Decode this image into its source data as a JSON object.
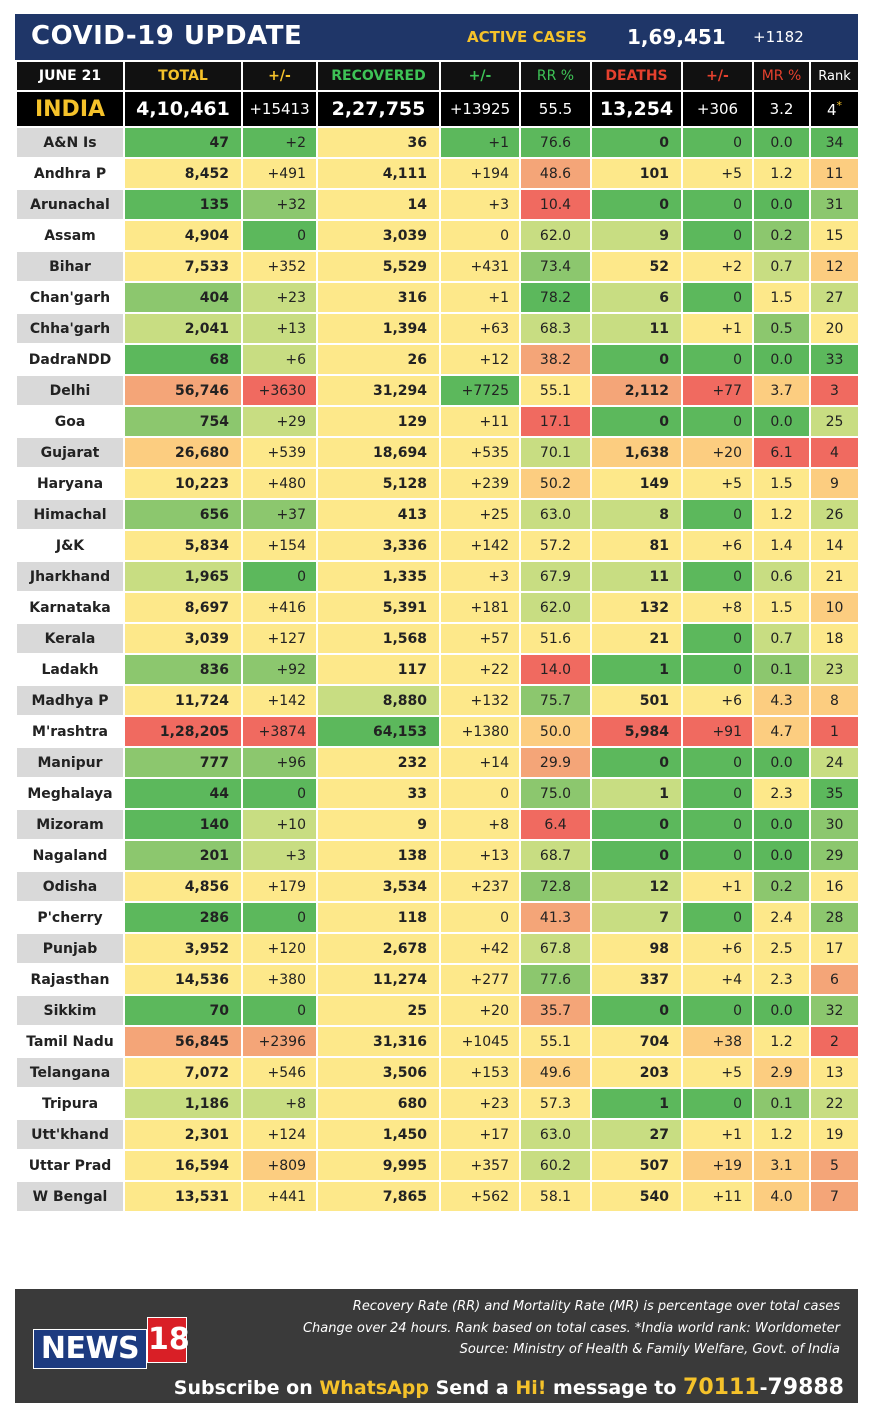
{
  "header": {
    "title": "COVID-19 UPDATE",
    "active_label": "ACTIVE CASES",
    "active_value": "1,69,451",
    "active_change": "+1182"
  },
  "columns": {
    "date": "JUNE 21",
    "total": "TOTAL",
    "total_change": "+/-",
    "recovered": "RECOVERED",
    "recovered_change": "+/-",
    "rr": "RR %",
    "deaths": "DEATHS",
    "deaths_change": "+/-",
    "mr": "MR %",
    "rank": "Rank"
  },
  "india": {
    "name": "INDIA",
    "total": "4,10,461",
    "total_change": "+15413",
    "recovered": "2,27,755",
    "recovered_change": "+13925",
    "rr": "55.5",
    "deaths": "13,254",
    "deaths_change": "+306",
    "mr": "3.2",
    "rank": "4",
    "rank_mark": "*"
  },
  "colors": {
    "header_blue": "#1f3668",
    "gold": "#f5c22a",
    "green_text": "#3ec456",
    "red_text": "#e5412e",
    "name_gray": "#d9d9d9",
    "name_white": "#ffffff",
    "scale": [
      "#5cb85c",
      "#8cc76e",
      "#c8dd82",
      "#fde88a",
      "#fccd80",
      "#f4a578",
      "#f06a60"
    ]
  },
  "states": [
    {
      "name": "A&N Is",
      "shade": "g",
      "total": "47",
      "tc": "+2",
      "rec": "36",
      "rc": "+1",
      "rr": "76.6",
      "deaths": "0",
      "dc": "0",
      "mr": "0.0",
      "rank": "34",
      "c": [
        0,
        0,
        3,
        0,
        0,
        0,
        0,
        0,
        0
      ]
    },
    {
      "name": "Andhra P",
      "shade": "w",
      "total": "8,452",
      "tc": "+491",
      "rec": "4,111",
      "rc": "+194",
      "rr": "48.6",
      "deaths": "101",
      "dc": "+5",
      "mr": "1.2",
      "rank": "11",
      "c": [
        3,
        3,
        3,
        3,
        5,
        3,
        3,
        3,
        4
      ]
    },
    {
      "name": "Arunachal",
      "shade": "g",
      "total": "135",
      "tc": "+32",
      "rec": "14",
      "rc": "+3",
      "rr": "10.4",
      "deaths": "0",
      "dc": "0",
      "mr": "0.0",
      "rank": "31",
      "c": [
        0,
        1,
        3,
        3,
        6,
        0,
        0,
        0,
        1
      ]
    },
    {
      "name": "Assam",
      "shade": "w",
      "total": "4,904",
      "tc": "0",
      "rec": "3,039",
      "rc": "0",
      "rr": "62.0",
      "deaths": "9",
      "dc": "0",
      "mr": "0.2",
      "rank": "15",
      "c": [
        3,
        0,
        3,
        3,
        2,
        2,
        0,
        1,
        3
      ]
    },
    {
      "name": "Bihar",
      "shade": "g",
      "total": "7,533",
      "tc": "+352",
      "rec": "5,529",
      "rc": "+431",
      "rr": "73.4",
      "deaths": "52",
      "dc": "+2",
      "mr": "0.7",
      "rank": "12",
      "c": [
        3,
        3,
        3,
        3,
        1,
        3,
        3,
        2,
        4
      ]
    },
    {
      "name": "Chan'garh",
      "shade": "w",
      "total": "404",
      "tc": "+23",
      "rec": "316",
      "rc": "+1",
      "rr": "78.2",
      "deaths": "6",
      "dc": "0",
      "mr": "1.5",
      "rank": "27",
      "c": [
        1,
        2,
        3,
        3,
        0,
        2,
        0,
        3,
        2
      ]
    },
    {
      "name": "Chha'garh",
      "shade": "g",
      "total": "2,041",
      "tc": "+13",
      "rec": "1,394",
      "rc": "+63",
      "rr": "68.3",
      "deaths": "11",
      "dc": "+1",
      "mr": "0.5",
      "rank": "20",
      "c": [
        2,
        2,
        3,
        3,
        2,
        2,
        3,
        1,
        3
      ]
    },
    {
      "name": "DadraNDD",
      "shade": "w",
      "total": "68",
      "tc": "+6",
      "rec": "26",
      "rc": "+12",
      "rr": "38.2",
      "deaths": "0",
      "dc": "0",
      "mr": "0.0",
      "rank": "33",
      "c": [
        0,
        2,
        3,
        3,
        5,
        0,
        0,
        0,
        0
      ]
    },
    {
      "name": "Delhi",
      "shade": "g",
      "total": "56,746",
      "tc": "+3630",
      "rec": "31,294",
      "rc": "+7725",
      "rr": "55.1",
      "deaths": "2,112",
      "dc": "+77",
      "mr": "3.7",
      "rank": "3",
      "c": [
        5,
        6,
        3,
        0,
        3,
        5,
        6,
        4,
        6
      ]
    },
    {
      "name": "Goa",
      "shade": "w",
      "total": "754",
      "tc": "+29",
      "rec": "129",
      "rc": "+11",
      "rr": "17.1",
      "deaths": "0",
      "dc": "0",
      "mr": "0.0",
      "rank": "25",
      "c": [
        1,
        2,
        3,
        3,
        6,
        0,
        0,
        0,
        2
      ]
    },
    {
      "name": "Gujarat",
      "shade": "g",
      "total": "26,680",
      "tc": "+539",
      "rec": "18,694",
      "rc": "+535",
      "rr": "70.1",
      "deaths": "1,638",
      "dc": "+20",
      "mr": "6.1",
      "rank": "4",
      "c": [
        4,
        3,
        3,
        3,
        2,
        4,
        4,
        6,
        6
      ]
    },
    {
      "name": "Haryana",
      "shade": "w",
      "total": "10,223",
      "tc": "+480",
      "rec": "5,128",
      "rc": "+239",
      "rr": "50.2",
      "deaths": "149",
      "dc": "+5",
      "mr": "1.5",
      "rank": "9",
      "c": [
        3,
        3,
        3,
        3,
        4,
        3,
        3,
        3,
        4
      ]
    },
    {
      "name": "Himachal",
      "shade": "g",
      "total": "656",
      "tc": "+37",
      "rec": "413",
      "rc": "+25",
      "rr": "63.0",
      "deaths": "8",
      "dc": "0",
      "mr": "1.2",
      "rank": "26",
      "c": [
        1,
        1,
        3,
        3,
        2,
        2,
        0,
        3,
        2
      ]
    },
    {
      "name": "J&K",
      "shade": "w",
      "total": "5,834",
      "tc": "+154",
      "rec": "3,336",
      "rc": "+142",
      "rr": "57.2",
      "deaths": "81",
      "dc": "+6",
      "mr": "1.4",
      "rank": "14",
      "c": [
        3,
        3,
        3,
        3,
        3,
        3,
        3,
        3,
        3
      ]
    },
    {
      "name": "Jharkhand",
      "shade": "g",
      "total": "1,965",
      "tc": "0",
      "rec": "1,335",
      "rc": "+3",
      "rr": "67.9",
      "deaths": "11",
      "dc": "0",
      "mr": "0.6",
      "rank": "21",
      "c": [
        2,
        0,
        3,
        3,
        2,
        2,
        0,
        2,
        3
      ]
    },
    {
      "name": "Karnataka",
      "shade": "w",
      "total": "8,697",
      "tc": "+416",
      "rec": "5,391",
      "rc": "+181",
      "rr": "62.0",
      "deaths": "132",
      "dc": "+8",
      "mr": "1.5",
      "rank": "10",
      "c": [
        3,
        3,
        3,
        3,
        2,
        3,
        3,
        3,
        4
      ]
    },
    {
      "name": "Kerala",
      "shade": "g",
      "total": "3,039",
      "tc": "+127",
      "rec": "1,568",
      "rc": "+57",
      "rr": "51.6",
      "deaths": "21",
      "dc": "0",
      "mr": "0.7",
      "rank": "18",
      "c": [
        3,
        3,
        3,
        3,
        3,
        3,
        0,
        2,
        3
      ]
    },
    {
      "name": "Ladakh",
      "shade": "w",
      "total": "836",
      "tc": "+92",
      "rec": "117",
      "rc": "+22",
      "rr": "14.0",
      "deaths": "1",
      "dc": "0",
      "mr": "0.1",
      "rank": "23",
      "c": [
        1,
        1,
        3,
        3,
        6,
        0,
        0,
        1,
        2
      ]
    },
    {
      "name": "Madhya P",
      "shade": "g",
      "total": "11,724",
      "tc": "+142",
      "rec": "8,880",
      "rc": "+132",
      "rr": "75.7",
      "deaths": "501",
      "dc": "+6",
      "mr": "4.3",
      "rank": "8",
      "c": [
        3,
        3,
        2,
        3,
        1,
        3,
        3,
        4,
        4
      ]
    },
    {
      "name": "M'rashtra",
      "shade": "w",
      "total": "1,28,205",
      "tc": "+3874",
      "rec": "64,153",
      "rc": "+1380",
      "rr": "50.0",
      "deaths": "5,984",
      "dc": "+91",
      "mr": "4.7",
      "rank": "1",
      "c": [
        6,
        6,
        0,
        3,
        4,
        6,
        6,
        4,
        6
      ]
    },
    {
      "name": "Manipur",
      "shade": "g",
      "total": "777",
      "tc": "+96",
      "rec": "232",
      "rc": "+14",
      "rr": "29.9",
      "deaths": "0",
      "dc": "0",
      "mr": "0.0",
      "rank": "24",
      "c": [
        1,
        1,
        3,
        3,
        5,
        0,
        0,
        0,
        2
      ]
    },
    {
      "name": "Meghalaya",
      "shade": "w",
      "total": "44",
      "tc": "0",
      "rec": "33",
      "rc": "0",
      "rr": "75.0",
      "deaths": "1",
      "dc": "0",
      "mr": "2.3",
      "rank": "35",
      "c": [
        0,
        0,
        3,
        3,
        1,
        2,
        0,
        3,
        0
      ]
    },
    {
      "name": "Mizoram",
      "shade": "g",
      "total": "140",
      "tc": "+10",
      "rec": "9",
      "rc": "+8",
      "rr": "6.4",
      "deaths": "0",
      "dc": "0",
      "mr": "0.0",
      "rank": "30",
      "c": [
        0,
        2,
        3,
        3,
        6,
        0,
        0,
        0,
        1
      ]
    },
    {
      "name": "Nagaland",
      "shade": "w",
      "total": "201",
      "tc": "+3",
      "rec": "138",
      "rc": "+13",
      "rr": "68.7",
      "deaths": "0",
      "dc": "0",
      "mr": "0.0",
      "rank": "29",
      "c": [
        1,
        2,
        3,
        3,
        2,
        0,
        0,
        0,
        1
      ]
    },
    {
      "name": "Odisha",
      "shade": "g",
      "total": "4,856",
      "tc": "+179",
      "rec": "3,534",
      "rc": "+237",
      "rr": "72.8",
      "deaths": "12",
      "dc": "+1",
      "mr": "0.2",
      "rank": "16",
      "c": [
        3,
        3,
        3,
        3,
        1,
        2,
        3,
        1,
        3
      ]
    },
    {
      "name": "P'cherry",
      "shade": "w",
      "total": "286",
      "tc": "0",
      "rec": "118",
      "rc": "0",
      "rr": "41.3",
      "deaths": "7",
      "dc": "0",
      "mr": "2.4",
      "rank": "28",
      "c": [
        0,
        0,
        3,
        3,
        5,
        2,
        0,
        3,
        1
      ]
    },
    {
      "name": "Punjab",
      "shade": "g",
      "total": "3,952",
      "tc": "+120",
      "rec": "2,678",
      "rc": "+42",
      "rr": "67.8",
      "deaths": "98",
      "dc": "+6",
      "mr": "2.5",
      "rank": "17",
      "c": [
        3,
        3,
        3,
        3,
        2,
        3,
        3,
        3,
        3
      ]
    },
    {
      "name": "Rajasthan",
      "shade": "w",
      "total": "14,536",
      "tc": "+380",
      "rec": "11,274",
      "rc": "+277",
      "rr": "77.6",
      "deaths": "337",
      "dc": "+4",
      "mr": "2.3",
      "rank": "6",
      "c": [
        3,
        3,
        3,
        3,
        1,
        3,
        3,
        3,
        5
      ]
    },
    {
      "name": "Sikkim",
      "shade": "g",
      "total": "70",
      "tc": "0",
      "rec": "25",
      "rc": "+20",
      "rr": "35.7",
      "deaths": "0",
      "dc": "0",
      "mr": "0.0",
      "rank": "32",
      "c": [
        0,
        0,
        3,
        3,
        5,
        0,
        0,
        0,
        1
      ]
    },
    {
      "name": "Tamil Nadu",
      "shade": "w",
      "total": "56,845",
      "tc": "+2396",
      "rec": "31,316",
      "rc": "+1045",
      "rr": "55.1",
      "deaths": "704",
      "dc": "+38",
      "mr": "1.2",
      "rank": "2",
      "c": [
        5,
        5,
        3,
        3,
        3,
        3,
        4,
        3,
        6
      ]
    },
    {
      "name": "Telangana",
      "shade": "g",
      "total": "7,072",
      "tc": "+546",
      "rec": "3,506",
      "rc": "+153",
      "rr": "49.6",
      "deaths": "203",
      "dc": "+5",
      "mr": "2.9",
      "rank": "13",
      "c": [
        3,
        3,
        3,
        3,
        4,
        3,
        3,
        4,
        3
      ]
    },
    {
      "name": "Tripura",
      "shade": "w",
      "total": "1,186",
      "tc": "+8",
      "rec": "680",
      "rc": "+23",
      "rr": "57.3",
      "deaths": "1",
      "dc": "0",
      "mr": "0.1",
      "rank": "22",
      "c": [
        2,
        2,
        3,
        3,
        3,
        0,
        0,
        1,
        2
      ]
    },
    {
      "name": "Utt'khand",
      "shade": "g",
      "total": "2,301",
      "tc": "+124",
      "rec": "1,450",
      "rc": "+17",
      "rr": "63.0",
      "deaths": "27",
      "dc": "+1",
      "mr": "1.2",
      "rank": "19",
      "c": [
        3,
        3,
        3,
        3,
        2,
        2,
        3,
        3,
        3
      ]
    },
    {
      "name": "Uttar Prad",
      "shade": "w",
      "total": "16,594",
      "tc": "+809",
      "rec": "9,995",
      "rc": "+357",
      "rr": "60.2",
      "deaths": "507",
      "dc": "+19",
      "mr": "3.1",
      "rank": "5",
      "c": [
        3,
        4,
        3,
        3,
        2,
        3,
        4,
        4,
        5
      ]
    },
    {
      "name": "W Bengal",
      "shade": "g",
      "total": "13,531",
      "tc": "+441",
      "rec": "7,865",
      "rc": "+562",
      "rr": "58.1",
      "deaths": "540",
      "dc": "+11",
      "mr": "4.0",
      "rank": "7",
      "c": [
        3,
        3,
        3,
        3,
        3,
        3,
        3,
        4,
        5
      ]
    }
  ],
  "footer": {
    "logo_main": "NEWS",
    "logo_num": "18",
    "note1": "Recovery Rate (RR) and Mortality Rate (MR) is percentage over total cases",
    "note2": "Change over 24 hours. Rank based on total cases.  *India world rank: Worldometer",
    "note3": "Source: Ministry of Health & Family Welfare, Govt. of India",
    "sub_pre": "Subscribe on ",
    "sub_app": "WhatsApp",
    "sub_mid": " Send a ",
    "sub_hi": "Hi!",
    "sub_post": " message to ",
    "sub_num_a": "70111",
    "sub_dash": "-",
    "sub_num_b": "79888"
  }
}
